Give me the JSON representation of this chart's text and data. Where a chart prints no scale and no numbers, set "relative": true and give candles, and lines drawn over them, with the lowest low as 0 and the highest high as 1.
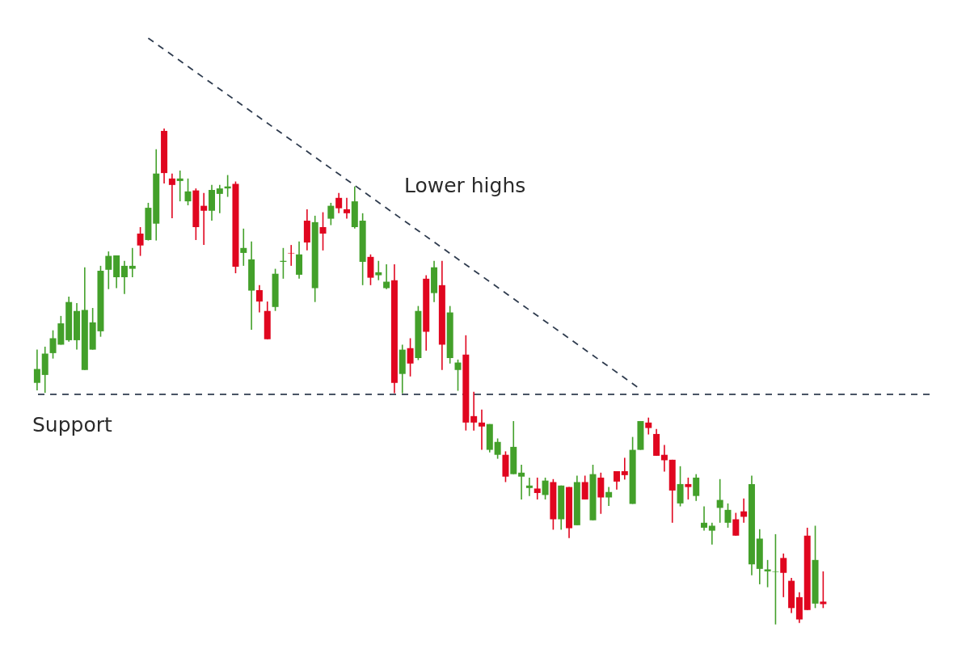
{
  "chart_data": {
    "type": "candlestick",
    "relative": true,
    "categories": [
      null,
      null,
      null,
      null,
      null,
      null,
      null,
      null,
      null,
      null,
      null,
      null,
      null,
      null,
      null,
      null,
      null,
      null,
      null,
      null,
      null,
      null,
      null,
      null,
      null,
      null,
      null,
      null,
      null,
      null,
      null,
      null,
      null,
      null,
      null,
      null,
      null,
      null,
      null,
      null,
      null,
      null,
      null,
      null,
      null,
      null,
      null,
      null,
      null,
      null,
      null,
      null,
      null,
      null,
      null,
      null,
      null,
      null,
      null,
      null,
      null,
      null,
      null,
      null,
      null,
      null,
      null,
      null,
      null,
      null,
      null,
      null,
      null,
      null,
      null,
      null,
      null,
      null,
      null,
      null,
      null,
      null,
      null,
      null,
      null,
      null,
      null,
      null,
      null,
      null,
      null,
      null,
      null,
      null,
      null,
      null,
      null,
      null,
      null,
      null
    ],
    "ohlc": [
      [
        0.487,
        0.554,
        0.472,
        0.515
      ],
      [
        0.503,
        0.56,
        0.467,
        0.546
      ],
      [
        0.547,
        0.593,
        0.536,
        0.577
      ],
      [
        0.564,
        0.622,
        0.564,
        0.607
      ],
      [
        0.573,
        0.661,
        0.57,
        0.65
      ],
      [
        0.573,
        0.648,
        0.554,
        0.632
      ],
      [
        0.513,
        0.72,
        0.513,
        0.634
      ],
      [
        0.554,
        0.638,
        0.554,
        0.609
      ],
      [
        0.591,
        0.723,
        0.58,
        0.713
      ],
      [
        0.715,
        0.752,
        0.676,
        0.743
      ],
      [
        0.7,
        0.744,
        0.678,
        0.744
      ],
      [
        0.7,
        0.733,
        0.666,
        0.723
      ],
      [
        0.717,
        0.759,
        0.7,
        0.723
      ],
      [
        0.788,
        0.801,
        0.743,
        0.764
      ],
      [
        0.775,
        0.85,
        0.774,
        0.84
      ],
      [
        0.808,
        0.958,
        0.774,
        0.909
      ],
      [
        0.995,
        1.0,
        0.889,
        0.91
      ],
      [
        0.899,
        0.909,
        0.819,
        0.886
      ],
      [
        0.894,
        0.915,
        0.853,
        0.899
      ],
      [
        0.853,
        0.899,
        0.845,
        0.873
      ],
      [
        0.875,
        0.879,
        0.775,
        0.801
      ],
      [
        0.844,
        0.87,
        0.765,
        0.834
      ],
      [
        0.834,
        0.886,
        0.814,
        0.876
      ],
      [
        0.868,
        0.886,
        0.829,
        0.879
      ],
      [
        0.879,
        0.906,
        0.862,
        0.883
      ],
      [
        0.888,
        0.893,
        0.708,
        0.721
      ],
      [
        0.749,
        0.798,
        0.723,
        0.759
      ],
      [
        0.673,
        0.772,
        0.594,
        0.736
      ],
      [
        0.674,
        0.684,
        0.629,
        0.651
      ],
      [
        0.632,
        0.651,
        0.575,
        0.575
      ],
      [
        0.64,
        0.717,
        0.632,
        0.707
      ],
      [
        0.731,
        0.759,
        0.697,
        0.733
      ],
      [
        0.749,
        0.765,
        0.723,
        0.748
      ],
      [
        0.705,
        0.772,
        0.697,
        0.746
      ],
      [
        0.814,
        0.837,
        0.754,
        0.77
      ],
      [
        0.678,
        0.824,
        0.65,
        0.811
      ],
      [
        0.801,
        0.831,
        0.754,
        0.788
      ],
      [
        0.818,
        0.85,
        0.805,
        0.844
      ],
      [
        0.86,
        0.87,
        0.829,
        0.839
      ],
      [
        0.837,
        0.86,
        0.818,
        0.829
      ],
      [
        0.801,
        0.883,
        0.798,
        0.853
      ],
      [
        0.731,
        0.829,
        0.684,
        0.814
      ],
      [
        0.741,
        0.746,
        0.684,
        0.699
      ],
      [
        0.704,
        0.733,
        0.694,
        0.71
      ],
      [
        0.678,
        0.726,
        0.676,
        0.691
      ],
      [
        0.694,
        0.726,
        0.466,
        0.487
      ],
      [
        0.505,
        0.564,
        0.466,
        0.554
      ],
      [
        0.557,
        0.577,
        0.5,
        0.526
      ],
      [
        0.537,
        0.642,
        0.533,
        0.632
      ],
      [
        0.697,
        0.704,
        0.552,
        0.59
      ],
      [
        0.668,
        0.733,
        0.65,
        0.72
      ],
      [
        0.684,
        0.733,
        0.513,
        0.564
      ],
      [
        0.537,
        0.642,
        0.526,
        0.629
      ],
      [
        0.513,
        0.534,
        0.471,
        0.528
      ],
      [
        0.544,
        0.583,
        0.391,
        0.407
      ],
      [
        0.42,
        0.469,
        0.391,
        0.407
      ],
      [
        0.407,
        0.433,
        0.352,
        0.399
      ],
      [
        0.352,
        0.404,
        0.347,
        0.404
      ],
      [
        0.342,
        0.375,
        0.334,
        0.368
      ],
      [
        0.342,
        0.349,
        0.287,
        0.298
      ],
      [
        0.303,
        0.41,
        0.303,
        0.358
      ],
      [
        0.298,
        0.322,
        0.252,
        0.306
      ],
      [
        0.275,
        0.296,
        0.259,
        0.28
      ],
      [
        0.274,
        0.296,
        0.252,
        0.265
      ],
      [
        0.261,
        0.296,
        0.252,
        0.29
      ],
      [
        0.287,
        0.293,
        0.191,
        0.212
      ],
      [
        0.212,
        0.28,
        0.191,
        0.28
      ],
      [
        0.277,
        0.277,
        0.174,
        0.194
      ],
      [
        0.2,
        0.3,
        0.2,
        0.287
      ],
      [
        0.287,
        0.3,
        0.252,
        0.252
      ],
      [
        0.21,
        0.322,
        0.21,
        0.303
      ],
      [
        0.296,
        0.306,
        0.223,
        0.256
      ],
      [
        0.256,
        0.277,
        0.239,
        0.267
      ],
      [
        0.309,
        0.309,
        0.272,
        0.288
      ],
      [
        0.309,
        0.336,
        0.292,
        0.301
      ],
      [
        0.243,
        0.378,
        0.243,
        0.352
      ],
      [
        0.352,
        0.41,
        0.352,
        0.41
      ],
      [
        0.407,
        0.417,
        0.383,
        0.396
      ],
      [
        0.384,
        0.394,
        0.34,
        0.34
      ],
      [
        0.342,
        0.362,
        0.308,
        0.331
      ],
      [
        0.332,
        0.332,
        0.205,
        0.27
      ],
      [
        0.244,
        0.319,
        0.238,
        0.283
      ],
      [
        0.283,
        0.296,
        0.252,
        0.277
      ],
      [
        0.259,
        0.303,
        0.249,
        0.296
      ],
      [
        0.195,
        0.238,
        0.189,
        0.205
      ],
      [
        0.189,
        0.205,
        0.161,
        0.199
      ],
      [
        0.235,
        0.293,
        0.205,
        0.251
      ],
      [
        0.205,
        0.244,
        0.195,
        0.231
      ],
      [
        0.212,
        0.225,
        0.179,
        0.179
      ],
      [
        0.228,
        0.254,
        0.205,
        0.217
      ],
      [
        0.121,
        0.3,
        0.099,
        0.283
      ],
      [
        0.112,
        0.192,
        0.081,
        0.173
      ],
      [
        0.107,
        0.13,
        0.075,
        0.111
      ],
      [
        0.106,
        0.182,
        0.0,
        0.107
      ],
      [
        0.134,
        0.143,
        0.055,
        0.104
      ],
      [
        0.088,
        0.094,
        0.023,
        0.033
      ],
      [
        0.055,
        0.065,
        0.003,
        0.01
      ],
      [
        0.179,
        0.195,
        0.029,
        0.029
      ],
      [
        0.042,
        0.199,
        0.033,
        0.13
      ],
      [
        0.046,
        0.107,
        0.033,
        0.041
      ]
    ],
    "colors": [
      "#43a02a",
      "#43a02a",
      "#43a02a",
      "#43a02a",
      "#43a02a",
      "#43a02a",
      "#43a02a",
      "#43a02a",
      "#43a02a",
      "#43a02a",
      "#43a02a",
      "#43a02a",
      "#43a02a",
      "#e0061f",
      "#43a02a",
      "#43a02a",
      "#e0061f",
      "#e0061f",
      "#43a02a",
      "#43a02a",
      "#e0061f",
      "#e0061f",
      "#43a02a",
      "#43a02a",
      "#43a02a",
      "#e0061f",
      "#43a02a",
      "#43a02a",
      "#e0061f",
      "#e0061f",
      "#43a02a",
      "#43a02a",
      "#e0061f",
      "#43a02a",
      "#e0061f",
      "#43a02a",
      "#e0061f",
      "#43a02a",
      "#e0061f",
      "#e0061f",
      "#43a02a",
      "#43a02a",
      "#e0061f",
      "#43a02a",
      "#43a02a",
      "#e0061f",
      "#43a02a",
      "#e0061f",
      "#43a02a",
      "#e0061f",
      "#43a02a",
      "#e0061f",
      "#43a02a",
      "#43a02a",
      "#e0061f",
      "#e0061f",
      "#e0061f",
      "#43a02a",
      "#43a02a",
      "#e0061f",
      "#43a02a",
      "#43a02a",
      "#43a02a",
      "#e0061f",
      "#43a02a",
      "#e0061f",
      "#43a02a",
      "#e0061f",
      "#43a02a",
      "#e0061f",
      "#43a02a",
      "#e0061f",
      "#43a02a",
      "#e0061f",
      "#e0061f",
      "#43a02a",
      "#43a02a",
      "#e0061f",
      "#e0061f",
      "#e0061f",
      "#e0061f",
      "#43a02a",
      "#e0061f",
      "#43a02a",
      "#43a02a",
      "#43a02a",
      "#43a02a",
      "#43a02a",
      "#e0061f",
      "#e0061f",
      "#43a02a",
      "#43a02a",
      "#43a02a",
      "#43a02a",
      "#e0061f",
      "#e0061f",
      "#e0061f",
      "#e0061f",
      "#43a02a",
      "#e0061f"
    ],
    "series": [
      {
        "type": "line",
        "name": "Lower highs",
        "color": "#2e3b4e",
        "line_style": "dashed",
        "values": [
          null,
          null,
          null,
          null,
          null,
          null,
          null,
          null,
          null,
          null,
          null,
          null,
          null,
          null,
          1.182,
          null,
          null,
          null,
          null,
          null,
          null,
          null,
          null,
          null,
          null,
          null,
          null,
          null,
          null,
          null,
          null,
          null,
          null,
          null,
          null,
          null,
          null,
          null,
          null,
          null,
          null,
          null,
          null,
          null,
          null,
          null,
          null,
          null,
          null,
          null,
          null,
          null,
          null,
          null,
          null,
          null,
          null,
          null,
          null,
          null,
          null,
          null,
          null,
          null,
          null,
          null,
          null,
          null,
          null,
          null,
          null,
          null,
          null,
          null,
          null,
          null,
          0.474,
          null,
          null,
          null,
          null,
          null,
          null,
          null,
          null,
          null,
          null,
          null,
          null,
          null,
          null,
          null,
          null,
          null,
          null,
          null,
          null,
          null,
          null,
          null
        ]
      }
    ],
    "ref_lines": [
      {
        "axis": "y",
        "value": 0.464,
        "label": "Support",
        "color": "#2e3b4e",
        "line_style": "dashed"
      }
    ]
  }
}
